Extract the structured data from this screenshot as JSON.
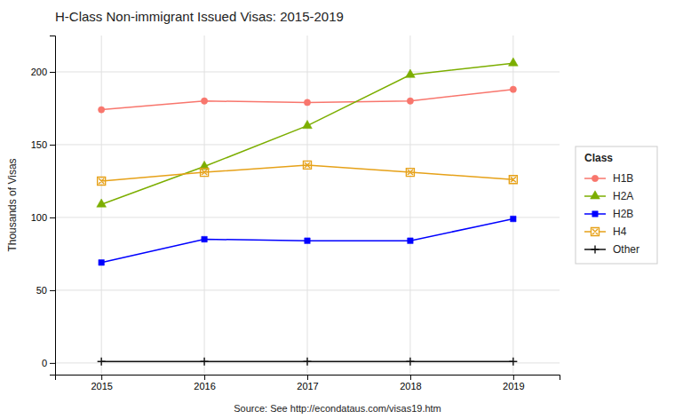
{
  "chart_data": {
    "type": "line",
    "title": "H-Class Non-immigrant Issued Visas: 2015-2019",
    "ylabel": "Thousands of Visas",
    "source": "Source: See http://econdataus.com/visas19.htm",
    "legend_title": "Class",
    "x": [
      2015,
      2016,
      2017,
      2018,
      2019
    ],
    "series": [
      {
        "name": "H1B",
        "color": "#F8766D",
        "marker": "circle",
        "line_style": "solid",
        "values": [
          174,
          180,
          179,
          180,
          188
        ]
      },
      {
        "name": "H2A",
        "color": "#7CAE00",
        "marker": "triangle",
        "line_style": "solid",
        "values": [
          109,
          135,
          163,
          198,
          206
        ]
      },
      {
        "name": "H2B",
        "color": "#0000FF",
        "marker": "square",
        "line_style": "solid",
        "values": [
          69,
          85,
          84,
          84,
          99
        ]
      },
      {
        "name": "H4",
        "color": "#E6A118",
        "marker": "square-x",
        "line_style": "solid",
        "values": [
          125,
          131,
          136,
          131,
          126
        ]
      },
      {
        "name": "Other",
        "color": "#111111",
        "marker": "plus",
        "line_style": "solid",
        "values": [
          1,
          1,
          1,
          1,
          1
        ]
      }
    ],
    "xlim": [
      2014.55,
      2019.45
    ],
    "ylim": [
      -8,
      225
    ],
    "xticks": [
      2015,
      2016,
      2017,
      2018,
      2019
    ],
    "yticks": [
      0,
      50,
      100,
      150,
      200
    ],
    "grid": true,
    "legend": "right"
  }
}
